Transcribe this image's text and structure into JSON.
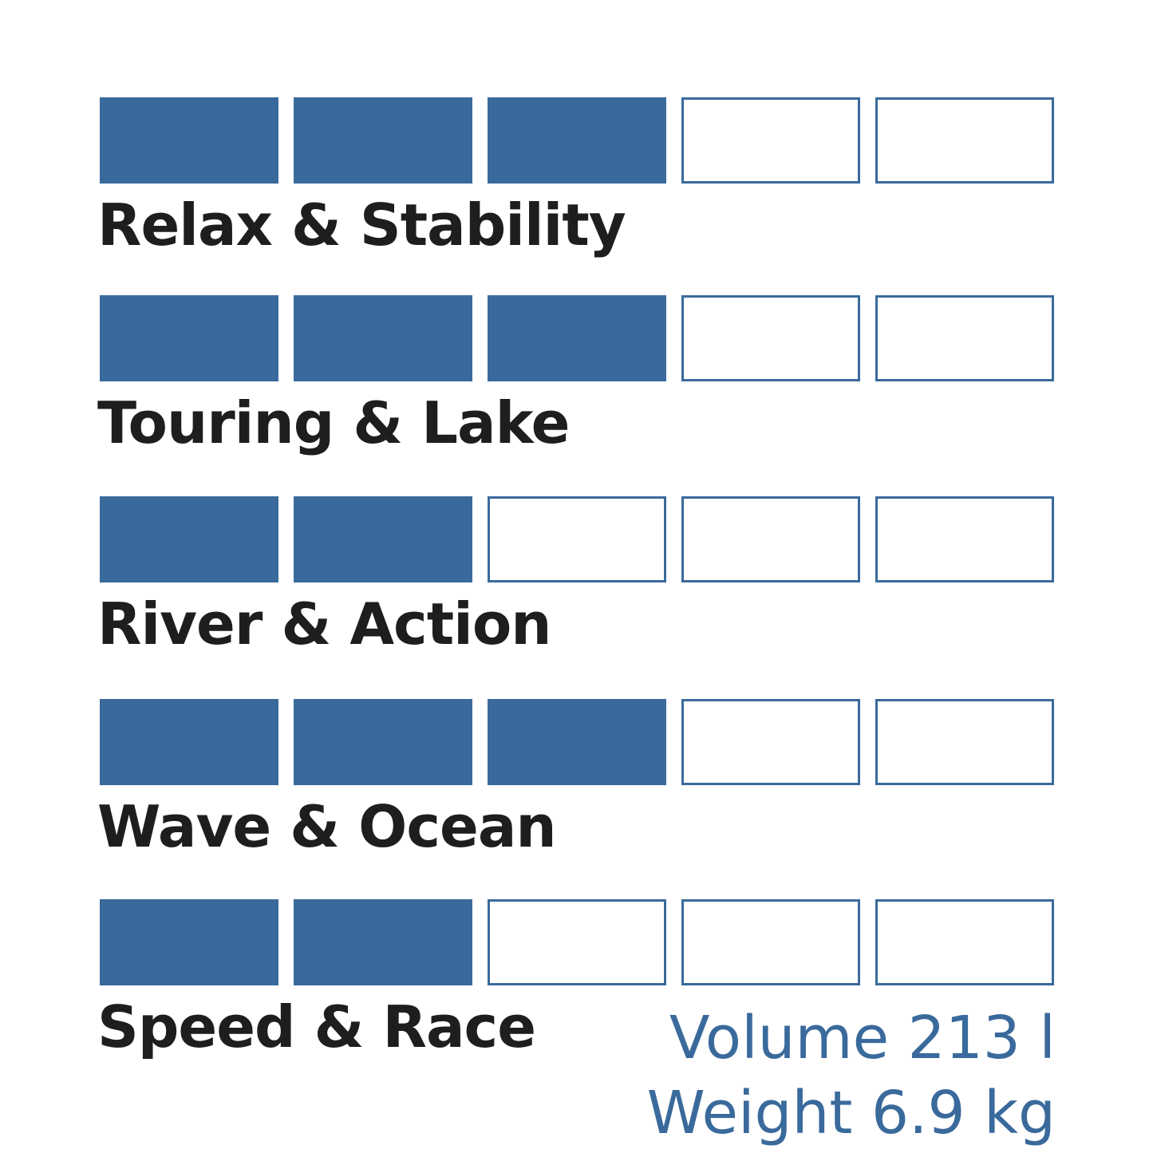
{
  "chart_data": {
    "type": "rating",
    "max": 5,
    "categories": [
      "Relax & Stability",
      "Touring & Lake",
      "River & Action",
      "Wave & Ocean",
      "Speed & Race"
    ],
    "values": [
      3,
      3,
      2,
      3,
      2
    ]
  },
  "colors": {
    "accent": "#3a6a9c",
    "text": "#1e1e1e"
  },
  "specs": {
    "volume": "Volume 213 l",
    "weight": "Weight 6.9 kg"
  }
}
